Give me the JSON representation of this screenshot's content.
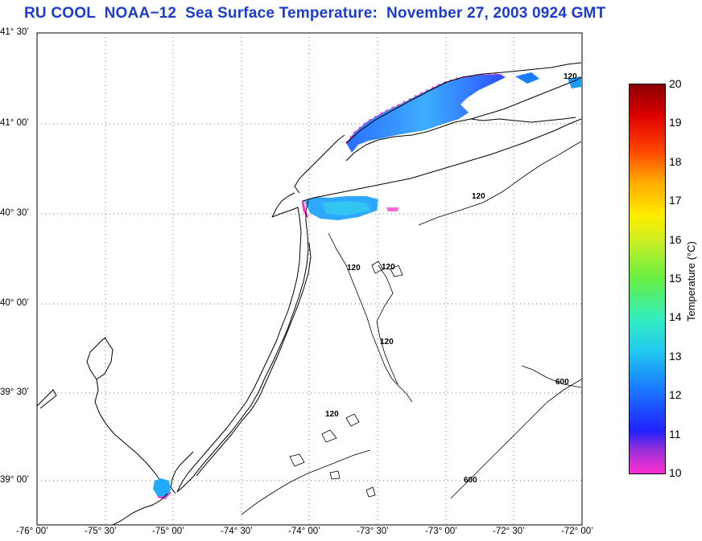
{
  "title": "RU COOL  NOAA−12  Sea Surface Temperature:  November 27, 2003 0924 GMT",
  "map": {
    "lat_labels": [
      "41° 30’",
      "41° 00’",
      "40° 30’",
      "40° 00’",
      "39° 30’",
      "39° 00’"
    ],
    "lon_labels": [
      "-76° 00’",
      "-75° 30’",
      "-75° 00’",
      "-74° 30’",
      "-74° 00’",
      "-73° 30’",
      "-73° 00’",
      "-72° 30’",
      "-72° 00’"
    ],
    "lat_range": [
      38.77,
      41.5
    ],
    "lon_range": [
      -76.0,
      -72.0
    ],
    "grid": "dotted",
    "isobath_labels": [
      "120",
      "120",
      "120",
      "120",
      "120",
      "120",
      "600",
      "600"
    ]
  },
  "colorbar": {
    "ticks": [
      "20",
      "19",
      "18",
      "17",
      "16",
      "15",
      "14",
      "13",
      "12",
      "11",
      "10"
    ],
    "label": "Temperature (°C)",
    "range": [
      10,
      20
    ],
    "colors": [
      "#ff33cc",
      "#7a29cc",
      "#1a1aff",
      "#1a8cff",
      "#33ddee",
      "#33eebb",
      "#66ee44",
      "#ccee22",
      "#ffee00",
      "#ffaa00",
      "#ff5500",
      "#ee0000",
      "#990000"
    ]
  }
}
